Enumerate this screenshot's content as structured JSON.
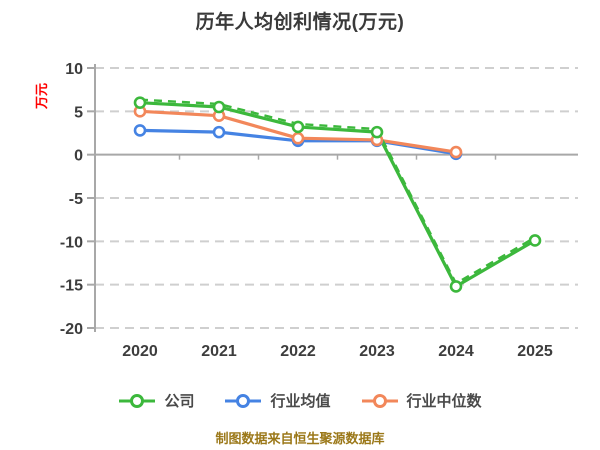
{
  "header": {
    "title": "历年人均创利情况(万元)",
    "title_color": "#3a3a3a"
  },
  "chart_data": {
    "type": "line",
    "title": "历年人均创利情况(万元)",
    "xlabel": "",
    "ylabel": "万元",
    "ylabel_color": "#ff0000",
    "categories": [
      "2020",
      "2021",
      "2022",
      "2023",
      "2024",
      "2025"
    ],
    "ylim": [
      -20,
      10
    ],
    "yticks": [
      10,
      5,
      0,
      -5,
      -10,
      -15,
      -20
    ],
    "grid": "horizontal-dashed",
    "legend_position": "bottom",
    "series": [
      {
        "name": "公司",
        "color": "#3cb83c",
        "marker": "circle-white-center",
        "line_style": "solid-with-dashdot-overlay",
        "values": [
          6.0,
          5.5,
          3.2,
          2.6,
          -15.2,
          -9.9
        ]
      },
      {
        "name": "行业均值",
        "color": "#4583e3",
        "marker": "circle-white-center",
        "line_style": "solid",
        "values": [
          2.8,
          2.6,
          1.6,
          1.6,
          0.1,
          null
        ]
      },
      {
        "name": "行业中位数",
        "color": "#f2875a",
        "marker": "circle-white-center",
        "line_style": "solid",
        "values": [
          5.0,
          4.5,
          1.9,
          1.7,
          0.3,
          null
        ]
      }
    ],
    "footnote": "制图数据来自恒生聚源数据库",
    "footnote_color": "#9b7819"
  },
  "legend": {
    "items": [
      {
        "label": "公司",
        "color": "#3cb83c"
      },
      {
        "label": "行业均值",
        "color": "#4583e3"
      },
      {
        "label": "行业中位数",
        "color": "#f2875a"
      }
    ]
  },
  "axis": {
    "text_color": "#3d3d3d",
    "grid_color": "#cfcfcf",
    "spine_color": "#a8a8a8"
  }
}
